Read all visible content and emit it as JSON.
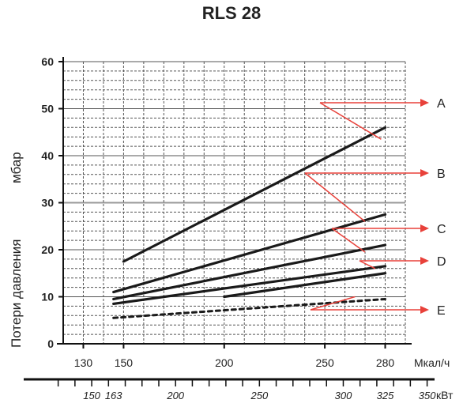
{
  "chart_data": {
    "type": "line",
    "title": "RLS 28",
    "ylabel": "Потери давления",
    "yunit": "мбар",
    "ylim": [
      0,
      60
    ],
    "yticks": [
      0,
      10,
      20,
      30,
      40,
      50,
      60
    ],
    "x_primary": {
      "unit": "Мкал/ч",
      "ticks": [
        130,
        150,
        200,
        250,
        280
      ]
    },
    "x_secondary": {
      "unit": "кВт",
      "ticks": [
        150,
        163,
        200,
        250,
        300,
        325,
        350
      ]
    },
    "xlim": [
      120,
      290
    ],
    "grid": true,
    "series": [
      {
        "name": "A",
        "x": [
          150,
          280
        ],
        "y": [
          17.5,
          46
        ],
        "style": "solid"
      },
      {
        "name": "B",
        "x": [
          145,
          280
        ],
        "y": [
          11,
          27.5
        ],
        "style": "solid"
      },
      {
        "name": "C",
        "x": [
          145,
          280
        ],
        "y": [
          9.5,
          21
        ],
        "style": "solid"
      },
      {
        "name": "D",
        "x": [
          145,
          280
        ],
        "y": [
          8.5,
          16.5
        ],
        "style": "solid"
      },
      {
        "name": "D",
        "x": [
          200,
          280
        ],
        "y": [
          10,
          15
        ],
        "style": "solid"
      },
      {
        "name": "E",
        "x": [
          145,
          280
        ],
        "y": [
          5.5,
          9.5
        ],
        "style": "dashed"
      }
    ],
    "annotations": [
      "A",
      "B",
      "C",
      "D",
      "E"
    ],
    "colors": {
      "line": "#1a1a1a",
      "grid": "#555555",
      "arrow": "#e8413a",
      "highlight": "#999999"
    }
  }
}
